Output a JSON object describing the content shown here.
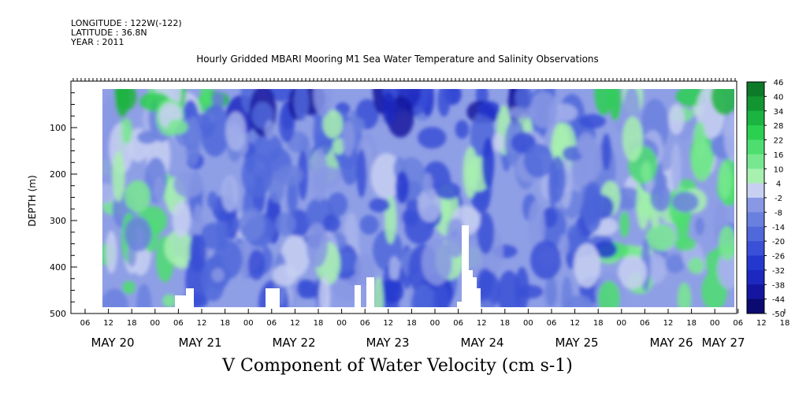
{
  "header": {
    "longitude": "LONGITUDE : 122W(-122)",
    "latitude": "LATITUDE : 36.8N",
    "year": "YEAR : 2011"
  },
  "chart_data": {
    "type": "heatmap",
    "title": "Hourly Gridded MBARI Mooring M1 Sea Water Temperature and Salinity Observations",
    "xlabel": "V Component of Water Velocity (cm s-1)",
    "ylabel": "DEPTH (m)",
    "y_axis": {
      "range": [
        500,
        0
      ],
      "inverted": true,
      "ticks": [
        100,
        200,
        300,
        400,
        500
      ],
      "tick_labels": [
        "100",
        "200",
        "300",
        "400",
        "500"
      ]
    },
    "x_axis": {
      "hour_labels": [
        "06",
        "12",
        "18",
        "00",
        "06",
        "12",
        "18",
        "00",
        "06",
        "12",
        "18",
        "00",
        "06",
        "12",
        "18",
        "00",
        "06",
        "12",
        "18",
        "00",
        "06",
        "12",
        "18",
        "00",
        "06",
        "12",
        "18",
        "00",
        "06",
        "12",
        "18",
        "00"
      ],
      "day_labels": [
        "MAY 20",
        "MAY 21",
        "MAY 22",
        "MAY 23",
        "MAY 24",
        "MAY 25",
        "MAY 26",
        "MAY 27"
      ]
    },
    "colorbar": {
      "range": [
        -50,
        46
      ],
      "tick_labels": [
        "46",
        "40",
        "34",
        "28",
        "22",
        "16",
        "10",
        "4",
        "-2",
        "-8",
        "-14",
        "-20",
        "-26",
        "-32",
        "-38",
        "-44",
        "-50"
      ],
      "negative_color": "#2b3cc6",
      "positive_color": "#0f8a2c",
      "zero_color": "#c6d0f0"
    },
    "data_depth_range_m": [
      15,
      485
    ],
    "grid": false,
    "legend": "right colorbar"
  }
}
